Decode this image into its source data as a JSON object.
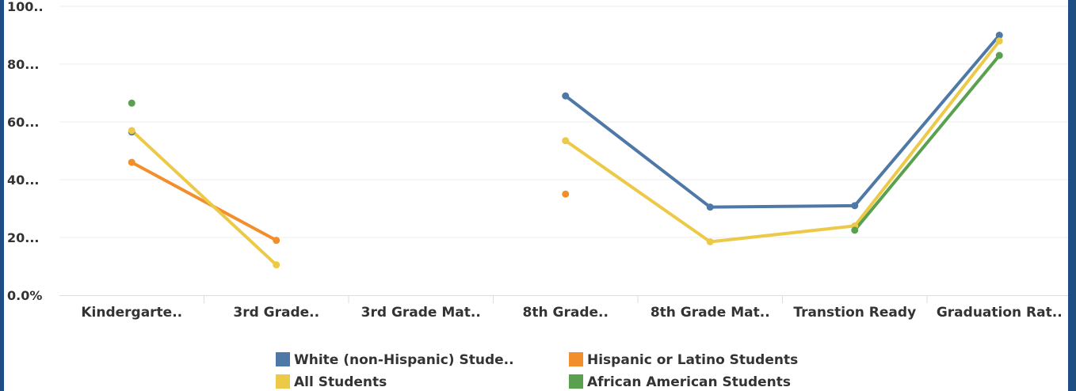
{
  "chart_data": {
    "type": "line",
    "categories": [
      "Kindergarte..",
      "3rd Grade..",
      "3rd Grade Mat..",
      "8th Grade..",
      "8th Grade Mat..",
      "Transtion Ready",
      "Graduation Rat.."
    ],
    "y_ticks": [
      "0.0%",
      "20...",
      "40...",
      "60...",
      "80...",
      "100.."
    ],
    "ylim": [
      0,
      100
    ],
    "grid": true,
    "legend_position": "bottom",
    "series": [
      {
        "name": "White (non-Hispanic) Stude..",
        "color": "#4e79a7",
        "values": [
          56.5,
          null,
          null,
          69,
          30.5,
          31,
          90
        ]
      },
      {
        "name": "Hispanic or Latino Students",
        "color": "#f28e2b",
        "values": [
          46,
          19,
          null,
          35,
          null,
          null,
          null
        ]
      },
      {
        "name": "All Students",
        "color": "#edc948",
        "values": [
          57,
          10.5,
          null,
          53.5,
          18.5,
          24,
          88
        ]
      },
      {
        "name": "African American Students",
        "color": "#59a14f",
        "values": [
          66.5,
          null,
          null,
          null,
          null,
          22.5,
          83
        ]
      }
    ],
    "legend_order": [
      0,
      1,
      2,
      3
    ]
  }
}
